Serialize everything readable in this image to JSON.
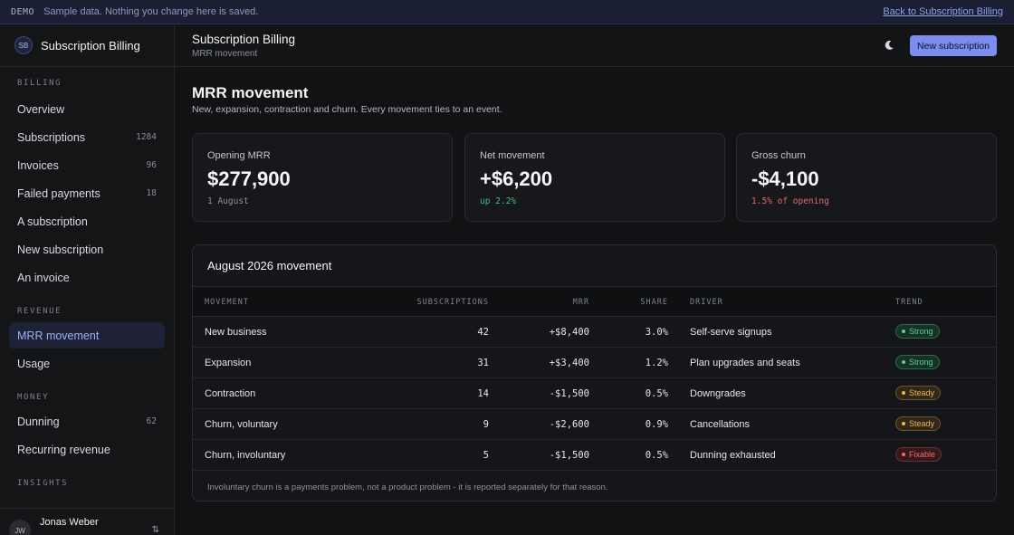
{
  "banner": {
    "tag": "DEMO",
    "message": "Sample data. Nothing you change here is saved.",
    "back_link": "Back to Subscription Billing"
  },
  "sidebar": {
    "logo": "SB",
    "app_name": "Subscription Billing",
    "sections": [
      {
        "title": "BILLING",
        "items": [
          {
            "label": "Overview",
            "count": ""
          },
          {
            "label": "Subscriptions",
            "count": "1284"
          },
          {
            "label": "Invoices",
            "count": "96"
          },
          {
            "label": "Failed payments",
            "count": "18"
          },
          {
            "label": "A subscription",
            "count": ""
          },
          {
            "label": "New subscription",
            "count": ""
          },
          {
            "label": "An invoice",
            "count": ""
          }
        ]
      },
      {
        "title": "REVENUE",
        "items": [
          {
            "label": "MRR movement",
            "count": "",
            "active": true
          },
          {
            "label": "Usage",
            "count": ""
          }
        ]
      },
      {
        "title": "MONEY",
        "items": [
          {
            "label": "Dunning",
            "count": "62"
          },
          {
            "label": "Recurring revenue",
            "count": ""
          }
        ]
      },
      {
        "title": "INSIGHTS",
        "items": []
      }
    ],
    "user": {
      "initials": "JW",
      "name": "Jonas Weber"
    }
  },
  "header": {
    "title": "Subscription Billing",
    "subtitle": "MRR movement",
    "theme_icon": "moon-icon",
    "new_button": "New subscription"
  },
  "page": {
    "title": "MRR movement",
    "subtitle": "New, expansion, contraction and churn. Every movement ties to an event."
  },
  "cards": [
    {
      "label": "Opening MRR",
      "value": "$277,900",
      "note": "1 August",
      "tone": "neutral"
    },
    {
      "label": "Net movement",
      "value": "+$6,200",
      "note": "up 2.2%",
      "tone": "up"
    },
    {
      "label": "Gross churn",
      "value": "-$4,100",
      "note": "1.5% of opening",
      "tone": "down"
    }
  ],
  "table": {
    "title": "August 2026 movement",
    "columns": {
      "movement": "MOVEMENT",
      "subscriptions": "SUBSCRIPTIONS",
      "mrr": "MRR",
      "share": "SHARE",
      "driver": "DRIVER",
      "trend": "TREND"
    },
    "rows": [
      {
        "movement": "New business",
        "subscriptions": "42",
        "mrr": "+$8,400",
        "share": "3.0%",
        "driver": "Self-serve signups",
        "trend": "Strong",
        "tone": "green"
      },
      {
        "movement": "Expansion",
        "subscriptions": "31",
        "mrr": "+$3,400",
        "share": "1.2%",
        "driver": "Plan upgrades and seats",
        "trend": "Strong",
        "tone": "green"
      },
      {
        "movement": "Contraction",
        "subscriptions": "14",
        "mrr": "-$1,500",
        "share": "0.5%",
        "driver": "Downgrades",
        "trend": "Steady",
        "tone": "amber"
      },
      {
        "movement": "Churn, voluntary",
        "subscriptions": "9",
        "mrr": "-$2,600",
        "share": "0.9%",
        "driver": "Cancellations",
        "trend": "Steady",
        "tone": "amber"
      },
      {
        "movement": "Churn, involuntary",
        "subscriptions": "5",
        "mrr": "-$1,500",
        "share": "0.5%",
        "driver": "Dunning exhausted",
        "trend": "Fixable",
        "tone": "red"
      }
    ],
    "footnote": "Involuntary churn is a payments problem, not a product problem - it is reported separately for that reason."
  }
}
